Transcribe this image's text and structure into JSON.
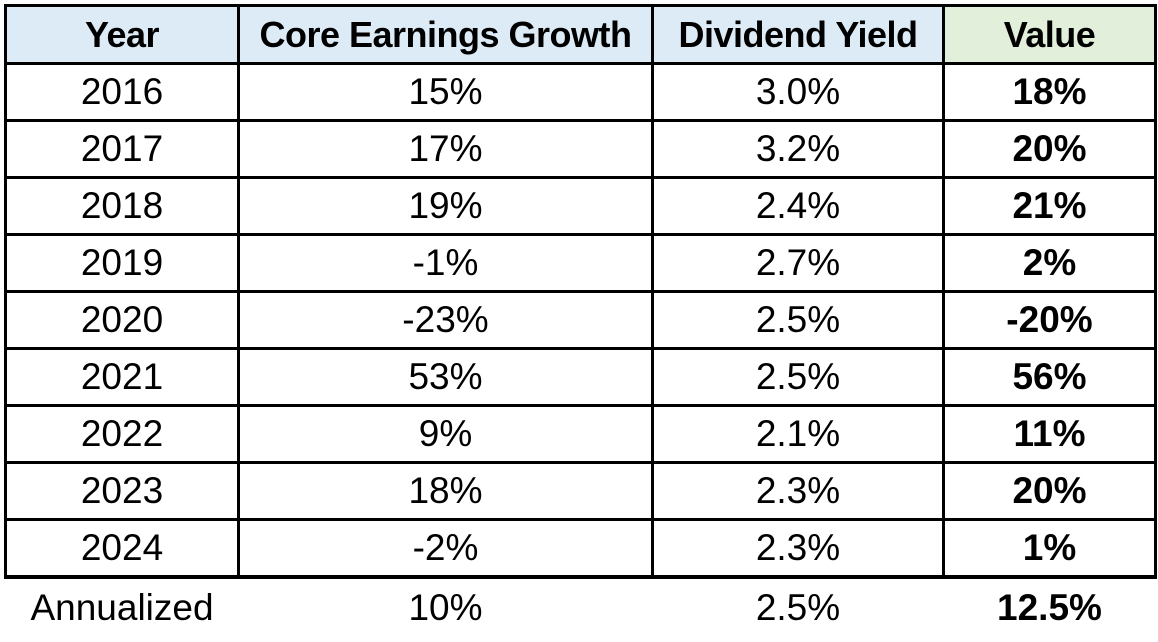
{
  "colors": {
    "header_blue": "#DDEBF7",
    "header_green": "#E2EFDA",
    "border": "#000000",
    "text": "#000000"
  },
  "table": {
    "columns": [
      {
        "label": "Year"
      },
      {
        "label": "Core Earnings Growth"
      },
      {
        "label": "Dividend Yield"
      },
      {
        "label": "Value"
      }
    ],
    "rows": [
      [
        "2016",
        "15%",
        "3.0%",
        "18%"
      ],
      [
        "2017",
        "17%",
        "3.2%",
        "20%"
      ],
      [
        "2018",
        "19%",
        "2.4%",
        "21%"
      ],
      [
        "2019",
        "-1%",
        "2.7%",
        "2%"
      ],
      [
        "2020",
        "-23%",
        "2.5%",
        "-20%"
      ],
      [
        "2021",
        "53%",
        "2.5%",
        "56%"
      ],
      [
        "2022",
        "9%",
        "2.1%",
        "11%"
      ],
      [
        "2023",
        "18%",
        "2.3%",
        "20%"
      ],
      [
        "2024",
        "-2%",
        "2.3%",
        "1%"
      ]
    ],
    "footer": [
      "Annualized",
      "10%",
      "2.5%",
      "12.5%"
    ]
  },
  "chart_data": {
    "type": "table",
    "title": "",
    "columns": [
      "Year",
      "Core Earnings Growth",
      "Dividend Yield",
      "Value"
    ],
    "rows": [
      [
        "2016",
        "15%",
        "3.0%",
        "18%"
      ],
      [
        "2017",
        "17%",
        "3.2%",
        "20%"
      ],
      [
        "2018",
        "19%",
        "2.4%",
        "21%"
      ],
      [
        "2019",
        "-1%",
        "2.7%",
        "2%"
      ],
      [
        "2020",
        "-23%",
        "2.5%",
        "-20%"
      ],
      [
        "2021",
        "53%",
        "2.5%",
        "56%"
      ],
      [
        "2022",
        "9%",
        "2.1%",
        "11%"
      ],
      [
        "2023",
        "18%",
        "2.3%",
        "20%"
      ],
      [
        "2024",
        "-2%",
        "2.3%",
        "1%"
      ],
      [
        "Annualized",
        "10%",
        "2.5%",
        "12.5%"
      ]
    ],
    "series": [
      {
        "name": "Core Earnings Growth",
        "values": [
          15,
          17,
          19,
          -1,
          -23,
          53,
          9,
          18,
          -2
        ]
      },
      {
        "name": "Dividend Yield",
        "values": [
          3.0,
          3.2,
          2.4,
          2.7,
          2.5,
          2.5,
          2.1,
          2.3,
          2.3
        ]
      },
      {
        "name": "Value",
        "values": [
          18,
          20,
          21,
          2,
          -20,
          56,
          11,
          20,
          1
        ]
      }
    ],
    "categories": [
      "2016",
      "2017",
      "2018",
      "2019",
      "2020",
      "2021",
      "2022",
      "2023",
      "2024"
    ],
    "annualized": {
      "core_earnings_growth": 10,
      "dividend_yield": 2.5,
      "value": 12.5
    },
    "layout": {
      "header_fill_main": "#DDEBF7",
      "header_fill_value": "#E2EFDA",
      "value_column_bold": true
    }
  }
}
